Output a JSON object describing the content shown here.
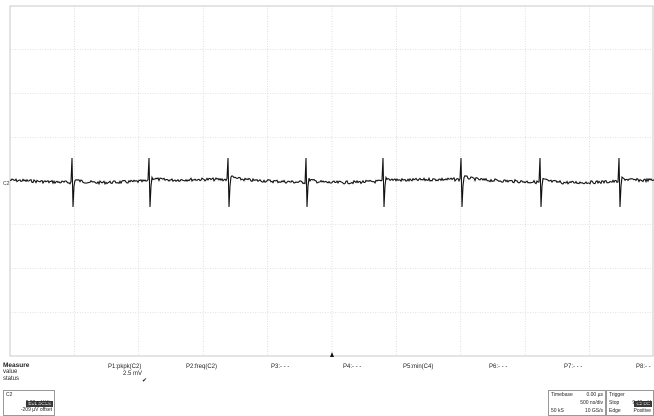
{
  "channel": {
    "marker": "C2",
    "name": "C2",
    "badge": "BwL DC1M",
    "vdiv": "2.00 mV/div",
    "offset": "-209 µV offset"
  },
  "measure": {
    "heading": "Measure",
    "row_labels": [
      "value",
      "status"
    ],
    "params": [
      {
        "label": "P1:pkpk(C2)",
        "value": "2.5 mV",
        "status": "✔"
      },
      {
        "label": "P2:freq(C2)",
        "value": "",
        "status": ""
      },
      {
        "label": "P3:- - -",
        "value": "",
        "status": ""
      },
      {
        "label": "P4:- - -",
        "value": "",
        "status": ""
      },
      {
        "label": "P5:min(C4)",
        "value": "",
        "status": ""
      },
      {
        "label": "P6:- - -",
        "value": "",
        "status": ""
      },
      {
        "label": "P7:- - -",
        "value": "",
        "status": ""
      },
      {
        "label": "P8:- -",
        "value": "",
        "status": ""
      }
    ]
  },
  "timebase": {
    "label": "Timebase",
    "delay": "0.00 µs",
    "tdiv": "500 ns/div",
    "samples": "50 kS",
    "rate": "10 GS/s"
  },
  "trigger": {
    "label": "Trigger",
    "badge": "C2 DC",
    "mode": "Stop",
    "level": "9.40 mV",
    "type": "Edge",
    "slope": "Positive"
  },
  "colors": {
    "grid": "#c8c8c8",
    "trace": "#111111",
    "chip": "#3a3a3a"
  }
}
